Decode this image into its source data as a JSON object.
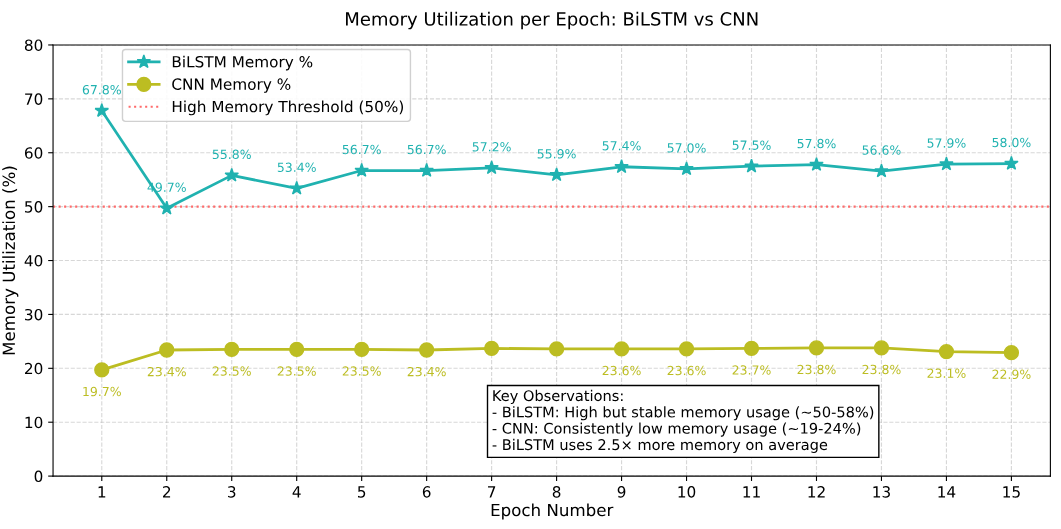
{
  "chart_data": {
    "type": "line",
    "title": "Memory Utilization per Epoch: BiLSTM vs CNN",
    "xlabel": "Epoch Number",
    "ylabel": "Memory Utilization (%)",
    "x": [
      1,
      2,
      3,
      4,
      5,
      6,
      7,
      8,
      9,
      10,
      11,
      12,
      13,
      14,
      15
    ],
    "series": [
      {
        "name": "BiLSTM Memory %",
        "color": "#20b2b0",
        "marker": "star",
        "values": [
          67.8,
          49.7,
          55.8,
          53.4,
          56.7,
          56.7,
          57.2,
          55.9,
          57.4,
          57.0,
          57.5,
          57.8,
          56.6,
          57.9,
          58.0
        ],
        "value_labels": [
          "67.8%",
          "49.7%",
          "55.8%",
          "53.4%",
          "56.7%",
          "56.7%",
          "57.2%",
          "55.9%",
          "57.4%",
          "57.0%",
          "57.5%",
          "57.8%",
          "56.6%",
          "57.9%",
          "58.0%"
        ]
      },
      {
        "name": "CNN Memory %",
        "color": "#bcbd22",
        "marker": "circle",
        "values": [
          19.7,
          23.4,
          23.5,
          23.5,
          23.5,
          23.4,
          23.7,
          23.6,
          23.6,
          23.6,
          23.7,
          23.8,
          23.8,
          23.1,
          22.9
        ],
        "value_labels": [
          "19.7%",
          "23.4%",
          "23.5%",
          "23.5%",
          "23.5%",
          "23.4%",
          null,
          null,
          "23.6%",
          "23.6%",
          "23.7%",
          "23.8%",
          "23.8%",
          "23.1%",
          "22.9%"
        ]
      }
    ],
    "ref_lines": [
      {
        "axis": "y",
        "value": 50,
        "label": "High Memory Threshold (50%)",
        "color": "#ff6b6b",
        "line_style": "dotted"
      }
    ],
    "annotations": [
      "Key Observations:\n- BiLSTM: High but stable memory usage (~50-58%)\n- CNN: Consistently low memory usage (~19-24%)\n- BiLSTM uses 2.5× more memory on average"
    ],
    "xlim": [
      0.25,
      15.6
    ],
    "xticks": [
      1,
      2,
      3,
      4,
      5,
      6,
      7,
      8,
      9,
      10,
      11,
      12,
      13,
      14,
      15
    ],
    "ylim": [
      0,
      80
    ],
    "yticks": [
      0,
      10,
      20,
      30,
      40,
      50,
      60,
      70,
      80
    ],
    "grid": true,
    "legend": "top left",
    "line_style": "solid"
  }
}
